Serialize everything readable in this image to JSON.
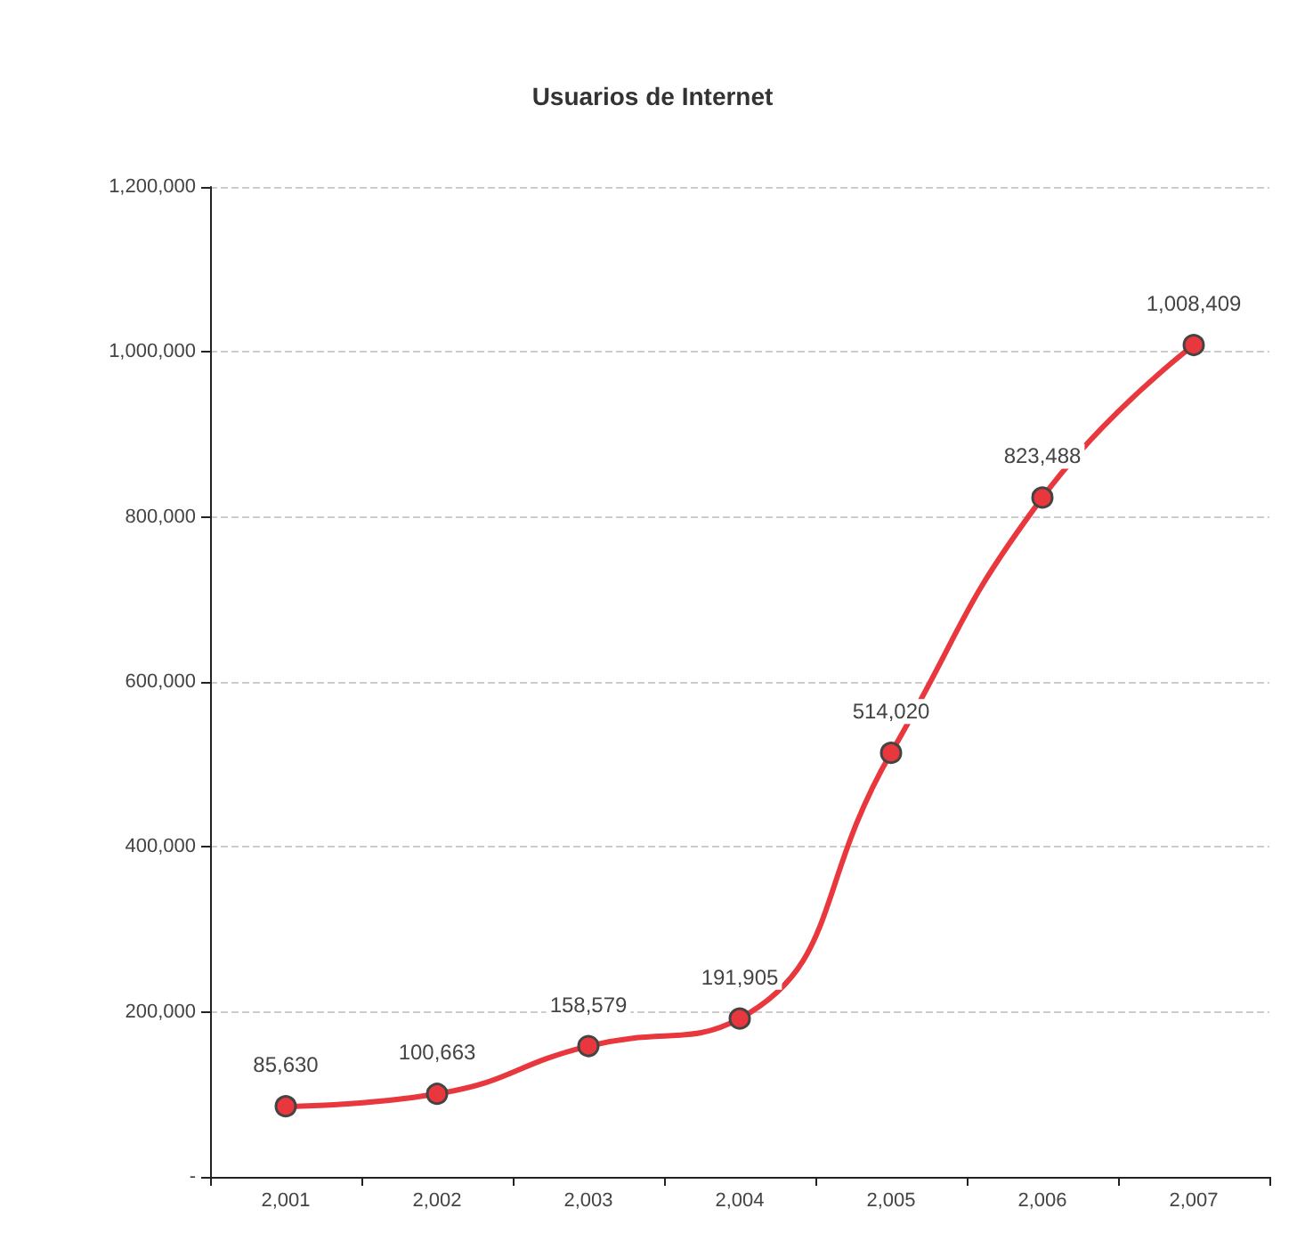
{
  "chart_data": {
    "type": "line",
    "title": "Usuarios de Internet",
    "categories": [
      "2,001",
      "2,002",
      "2,003",
      "2,004",
      "2,005",
      "2,006",
      "2,007"
    ],
    "series": [
      {
        "color": "#e8383d",
        "values": [
          85630,
          100663,
          158579,
          191905,
          514020,
          823488,
          1008409
        ],
        "value_labels": [
          "85,630",
          "100,663",
          "158,579",
          "191,905",
          "514,020",
          "823,488",
          "1,008,409"
        ]
      }
    ],
    "ylim": [
      0,
      1200000
    ],
    "yticks": [
      {
        "value": 0,
        "label": "-"
      },
      {
        "value": 200000,
        "label": "200,000"
      },
      {
        "value": 400000,
        "label": "400,000"
      },
      {
        "value": 600000,
        "label": "600,000"
      },
      {
        "value": 800000,
        "label": "800,000"
      },
      {
        "value": 1000000,
        "label": "1,000,000"
      },
      {
        "value": 1200000,
        "label": "1,200,000"
      }
    ],
    "grid": "y",
    "marker": "circle",
    "line_style": "solid"
  }
}
